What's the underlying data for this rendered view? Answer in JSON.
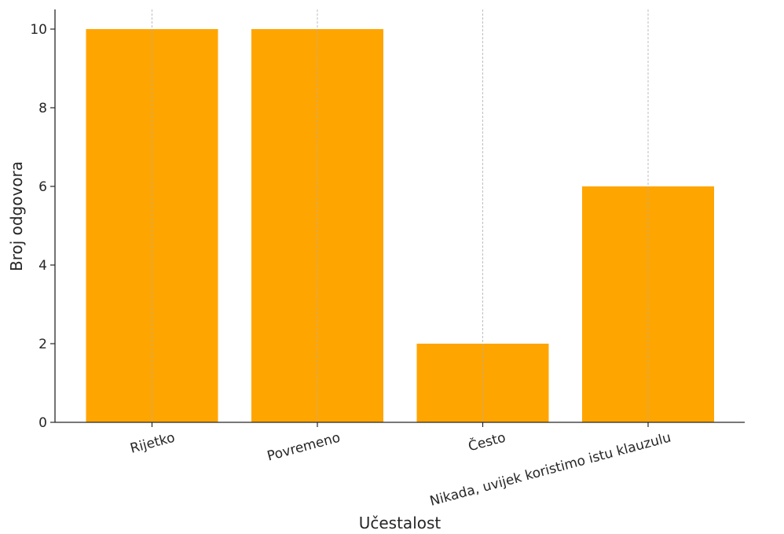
{
  "chart_data": {
    "type": "bar",
    "title": "",
    "xlabel": "Učestalost",
    "ylabel": "Broj odgovora",
    "categories": [
      "Rijetko",
      "Povremeno",
      "Često",
      "Nikada, uvijek koristimo istu klauzulu"
    ],
    "values": [
      10,
      10,
      2,
      6
    ],
    "ylim": [
      0,
      10.5
    ],
    "yticks": [
      0,
      2,
      4,
      6,
      8,
      10
    ],
    "x_grid": true,
    "y_grid": false,
    "bar_color": "#FFA500",
    "grid_color": "#b0b0b0"
  }
}
